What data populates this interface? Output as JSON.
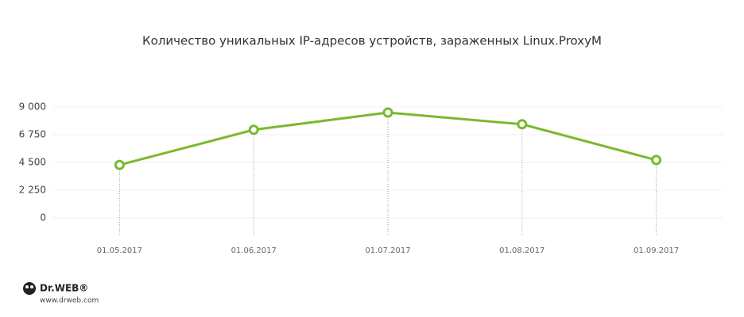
{
  "chart_data": {
    "type": "line",
    "title": "Количество уникальных IP-адресов устройств, зараженных Linux.ProxyM",
    "categories": [
      "01.05.2017",
      "01.06.2017",
      "01.07.2017",
      "01.08.2017",
      "01.09.2017"
    ],
    "values": [
      4300,
      7150,
      8550,
      7600,
      4700
    ],
    "color": "#7cb82f",
    "ylim": [
      0,
      9000
    ],
    "yticks": [
      0,
      {
        "value": 2250,
        "label": "2 250"
      },
      {
        "value": 4500,
        "label": "4 500"
      },
      {
        "value": 6750,
        "label": "6 750"
      },
      {
        "value": 9000,
        "label": "9 000"
      }
    ],
    "grid": true
  },
  "logo": {
    "name": "Dr.WEB®",
    "url": "www.drweb.com"
  }
}
